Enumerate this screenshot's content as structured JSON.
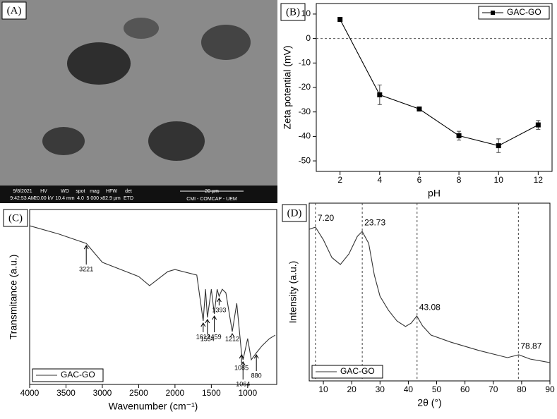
{
  "sem_image": {
    "panel": "(A)",
    "info": [
      [
        "9/8/2021",
        "9:42:53 AM"
      ],
      [
        "HV",
        "20.00 kV"
      ],
      [
        "WD",
        "10.4 mm"
      ],
      [
        "spot",
        "4.0"
      ],
      [
        "mag",
        "5 000 x"
      ],
      [
        "HFW",
        "82.9 µm"
      ],
      [
        "det",
        "ETD"
      ]
    ],
    "scale_bar": "20 µm",
    "facility": "CMI - COMCAP - UEM"
  },
  "chart_data": [
    {
      "type": "line",
      "panel": "(B)",
      "x_label": "pH",
      "y_label": "Zeta potential (mV)",
      "xlim": [
        0.8,
        12.7
      ],
      "xticks": [
        2,
        4,
        6,
        8,
        10,
        12
      ],
      "ylim": [
        -54.3,
        14.3
      ],
      "yticks": [
        10,
        0,
        -10,
        -20,
        -30,
        -40,
        -50
      ],
      "hline": 0,
      "legend": "upper right",
      "series": [
        {
          "name": "GAC-GO",
          "color": "#000000",
          "markers": true,
          "x": [
            2,
            4,
            6,
            8,
            10,
            12
          ],
          "values": [
            7.8,
            -23,
            -28.8,
            -39.7,
            -43.8,
            -35.3
          ],
          "errors": [
            0.8,
            4,
            0.5,
            1.8,
            2.8,
            1.8
          ]
        }
      ]
    },
    {
      "type": "line",
      "panel": "(C)",
      "x_label": "Wavenumber (cm⁻¹)",
      "y_label": "Transmitance (a.u.)",
      "xlim": [
        4000,
        600
      ],
      "xticks": [
        4000,
        3500,
        3000,
        2500,
        2000,
        1500,
        1000
      ],
      "ylim": [
        0,
        100
      ],
      "legend": "lower left",
      "peaks": [
        3221,
        1612,
        1554,
        1459,
        1393,
        1212,
        1085,
        1064,
        880
      ],
      "series": [
        {
          "name": "GAC-GO",
          "color": "#333333",
          "x": [
            4000,
            3600,
            3221,
            3000,
            2500,
            2350,
            2100,
            2000,
            1700,
            1612,
            1580,
            1554,
            1500,
            1459,
            1420,
            1393,
            1350,
            1300,
            1212,
            1150,
            1085,
            1064,
            1000,
            950,
            880,
            800,
            700,
            620
          ],
          "values": [
            90.7,
            86,
            80.6,
            69.8,
            61.7,
            56.5,
            64.5,
            65.7,
            62.5,
            36.3,
            54.4,
            38.3,
            54.4,
            40.3,
            54.4,
            50.4,
            54.4,
            52.4,
            30.2,
            46.4,
            18.1,
            14.1,
            26.2,
            14.1,
            18.1,
            22.2,
            26.2,
            28.2
          ]
        }
      ]
    },
    {
      "type": "line",
      "panel": "(D)",
      "x_label": "2θ (°)",
      "y_label": "Intensity (a.u.)",
      "xlim": [
        5,
        90
      ],
      "xticks": [
        10,
        20,
        30,
        40,
        50,
        60,
        70,
        80,
        90
      ],
      "ylim": [
        0,
        100
      ],
      "legend": "lower left",
      "peaks": [
        {
          "value": 7.2,
          "label": "7.20"
        },
        23.73,
        43.08,
        78.87
      ],
      "series": [
        {
          "name": "GAC-GO",
          "color": "#333333",
          "x": [
            5,
            7.2,
            10,
            13,
            16,
            19,
            22,
            23.7,
            26,
            28,
            30,
            33,
            36,
            39,
            41,
            43,
            45,
            48,
            55,
            65,
            75,
            79,
            83,
            90
          ],
          "values": [
            85.3,
            86.5,
            79.4,
            69.4,
            65.5,
            71.4,
            81.3,
            84.1,
            77.4,
            59.5,
            47.6,
            39.7,
            33.7,
            30.6,
            32.5,
            36.5,
            31,
            25.8,
            21.8,
            17.1,
            13.1,
            14.7,
            12.3,
            10.3
          ]
        }
      ]
    }
  ]
}
